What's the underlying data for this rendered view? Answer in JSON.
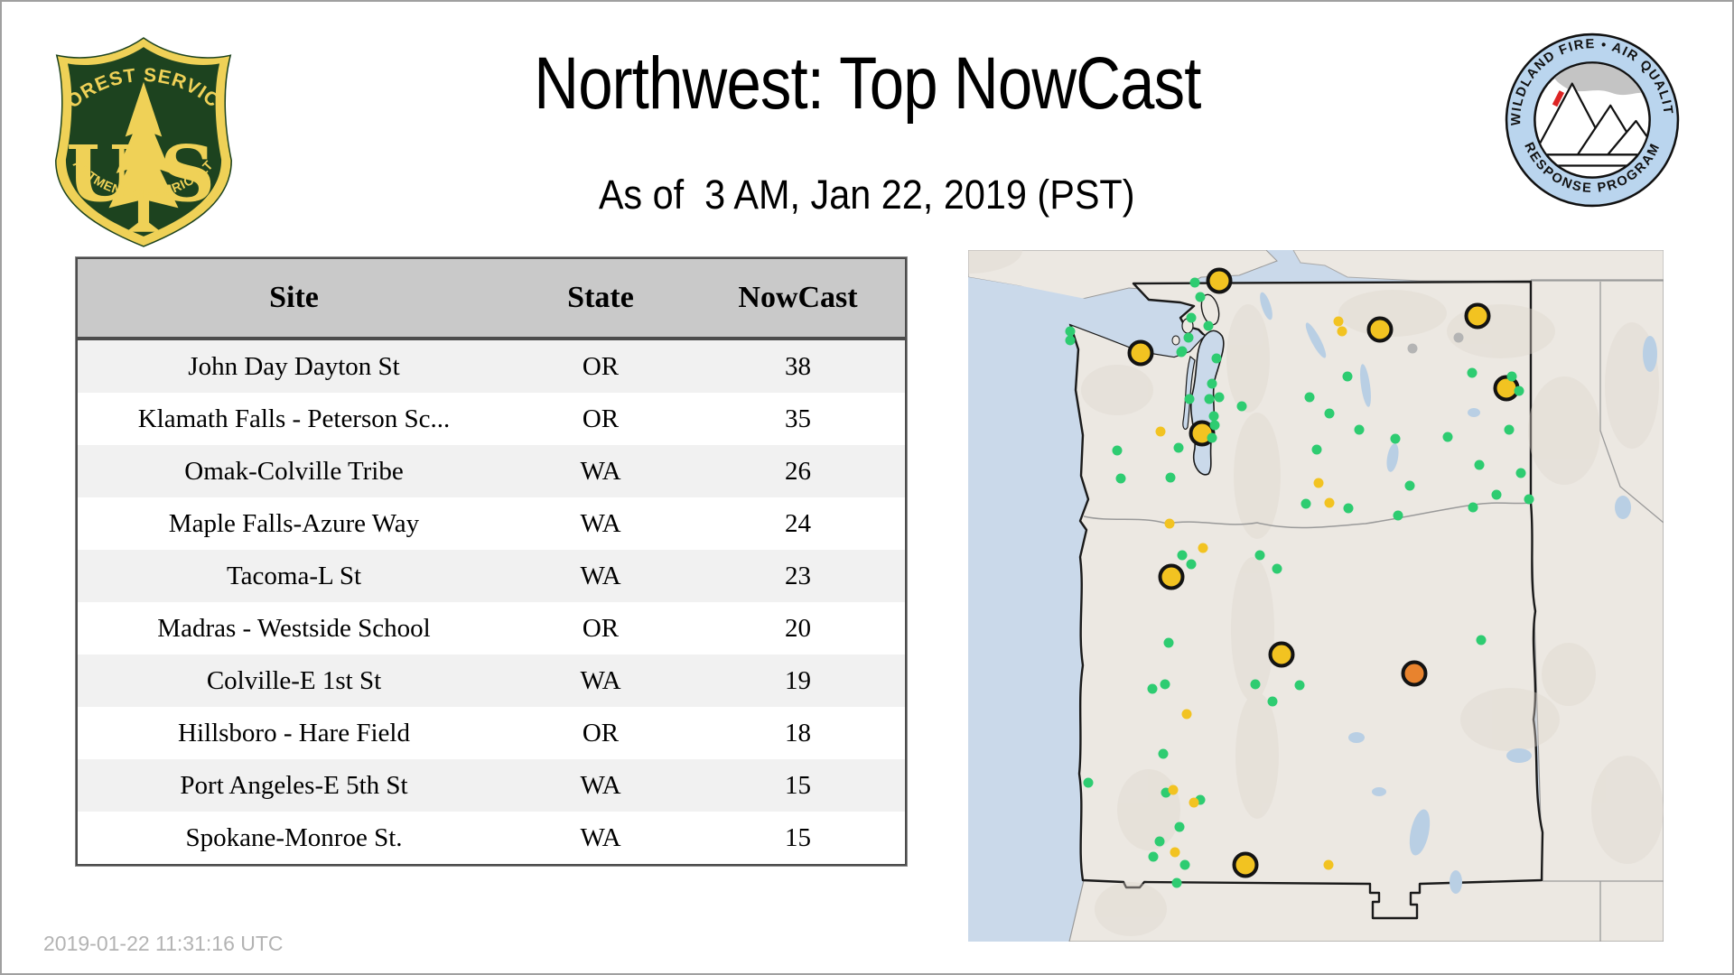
{
  "header": {
    "title": "Northwest: Top NowCast",
    "subtitle": "As of  3 AM, Jan 22, 2019 (PST)",
    "fs_logo": {
      "arc_top": "FOREST SERVICE",
      "letter_u": "U",
      "letter_s": "S",
      "arc_bottom": "DEPARTMENT OF AGRICULTURE"
    },
    "aq_logo": {
      "arc_top": "WILDLAND FIRE • AIR QUALITY",
      "arc_bottom": "RESPONSE PROGRAM"
    }
  },
  "table": {
    "columns": [
      "Site",
      "State",
      "NowCast"
    ],
    "rows": [
      {
        "site": "John Day Dayton St",
        "state": "OR",
        "nowcast": "38"
      },
      {
        "site": "Klamath Falls - Peterson Sc...",
        "state": "OR",
        "nowcast": "35"
      },
      {
        "site": "Omak-Colville Tribe",
        "state": "WA",
        "nowcast": "26"
      },
      {
        "site": "Maple Falls-Azure Way",
        "state": "WA",
        "nowcast": "24"
      },
      {
        "site": "Tacoma-L St",
        "state": "WA",
        "nowcast": "23"
      },
      {
        "site": "Madras - Westside School",
        "state": "OR",
        "nowcast": "20"
      },
      {
        "site": "Colville-E 1st St",
        "state": "WA",
        "nowcast": "19"
      },
      {
        "site": "Hillsboro - Hare Field",
        "state": "OR",
        "nowcast": "18"
      },
      {
        "site": "Port Angeles-E 5th St",
        "state": "WA",
        "nowcast": "15"
      },
      {
        "site": "Spokane-Monroe St.",
        "state": "WA",
        "nowcast": "15"
      }
    ]
  },
  "map": {
    "colors": {
      "green": "#2ecc71",
      "yellow": "#f2c321",
      "orange": "#e8832e",
      "gray": "#b4b4b4",
      "water": "#cad9ea",
      "land": "#ece8e2",
      "outline": "#1a1a1a"
    },
    "markers": [
      {
        "x": 36.1,
        "y": 4.4,
        "c": "yellow",
        "s": "large"
      },
      {
        "x": 24.8,
        "y": 14.9,
        "c": "yellow",
        "s": "large"
      },
      {
        "x": 73.2,
        "y": 9.5,
        "c": "yellow",
        "s": "large"
      },
      {
        "x": 59.2,
        "y": 11.5,
        "c": "yellow",
        "s": "large"
      },
      {
        "x": 77.4,
        "y": 20.0,
        "c": "yellow",
        "s": "large"
      },
      {
        "x": 33.6,
        "y": 26.5,
        "c": "yellow",
        "s": "large"
      },
      {
        "x": 29.2,
        "y": 47.3,
        "c": "yellow",
        "s": "large"
      },
      {
        "x": 45.1,
        "y": 58.5,
        "c": "yellow",
        "s": "large"
      },
      {
        "x": 39.9,
        "y": 88.9,
        "c": "yellow",
        "s": "large"
      },
      {
        "x": 64.2,
        "y": 61.2,
        "c": "orange",
        "s": "large"
      },
      {
        "x": 32.6,
        "y": 4.7,
        "c": "green",
        "s": "small"
      },
      {
        "x": 33.4,
        "y": 6.8,
        "c": "green",
        "s": "small"
      },
      {
        "x": 32.1,
        "y": 9.8,
        "c": "green",
        "s": "small"
      },
      {
        "x": 34.5,
        "y": 11.0,
        "c": "green",
        "s": "small"
      },
      {
        "x": 31.7,
        "y": 12.7,
        "c": "green",
        "s": "small"
      },
      {
        "x": 30.6,
        "y": 14.8,
        "c": "green",
        "s": "small"
      },
      {
        "x": 35.7,
        "y": 15.7,
        "c": "green",
        "s": "small"
      },
      {
        "x": 14.7,
        "y": 11.7,
        "c": "green",
        "s": "small"
      },
      {
        "x": 14.7,
        "y": 13.1,
        "c": "green",
        "s": "small"
      },
      {
        "x": 30.8,
        "y": 14.6,
        "c": "green",
        "s": "small"
      },
      {
        "x": 35.1,
        "y": 19.3,
        "c": "green",
        "s": "small"
      },
      {
        "x": 31.8,
        "y": 21.5,
        "c": "green",
        "s": "small"
      },
      {
        "x": 34.7,
        "y": 21.5,
        "c": "green",
        "s": "small"
      },
      {
        "x": 36.1,
        "y": 21.3,
        "c": "green",
        "s": "small"
      },
      {
        "x": 39.4,
        "y": 22.6,
        "c": "green",
        "s": "small"
      },
      {
        "x": 35.3,
        "y": 24.0,
        "c": "green",
        "s": "small"
      },
      {
        "x": 35.5,
        "y": 25.3,
        "c": "green",
        "s": "small"
      },
      {
        "x": 35.1,
        "y": 27.2,
        "c": "green",
        "s": "small"
      },
      {
        "x": 30.3,
        "y": 28.6,
        "c": "green",
        "s": "small"
      },
      {
        "x": 21.4,
        "y": 29.0,
        "c": "green",
        "s": "small"
      },
      {
        "x": 21.9,
        "y": 33.0,
        "c": "green",
        "s": "small"
      },
      {
        "x": 29.1,
        "y": 32.9,
        "c": "green",
        "s": "small"
      },
      {
        "x": 30.8,
        "y": 44.1,
        "c": "green",
        "s": "small"
      },
      {
        "x": 32.1,
        "y": 45.4,
        "c": "green",
        "s": "small"
      },
      {
        "x": 41.9,
        "y": 44.1,
        "c": "green",
        "s": "small"
      },
      {
        "x": 44.4,
        "y": 46.1,
        "c": "green",
        "s": "small"
      },
      {
        "x": 54.5,
        "y": 18.3,
        "c": "green",
        "s": "small"
      },
      {
        "x": 49.1,
        "y": 21.3,
        "c": "green",
        "s": "small"
      },
      {
        "x": 51.9,
        "y": 23.6,
        "c": "green",
        "s": "small"
      },
      {
        "x": 56.2,
        "y": 26.0,
        "c": "green",
        "s": "small"
      },
      {
        "x": 61.4,
        "y": 27.3,
        "c": "green",
        "s": "small"
      },
      {
        "x": 69.0,
        "y": 27.0,
        "c": "green",
        "s": "small"
      },
      {
        "x": 72.5,
        "y": 17.8,
        "c": "green",
        "s": "small"
      },
      {
        "x": 78.2,
        "y": 18.3,
        "c": "green",
        "s": "small"
      },
      {
        "x": 79.2,
        "y": 20.4,
        "c": "green",
        "s": "small"
      },
      {
        "x": 77.8,
        "y": 26.0,
        "c": "green",
        "s": "small"
      },
      {
        "x": 50.1,
        "y": 28.9,
        "c": "green",
        "s": "small"
      },
      {
        "x": 63.5,
        "y": 34.1,
        "c": "green",
        "s": "small"
      },
      {
        "x": 73.5,
        "y": 31.1,
        "c": "green",
        "s": "small"
      },
      {
        "x": 79.5,
        "y": 32.2,
        "c": "green",
        "s": "small"
      },
      {
        "x": 76.0,
        "y": 35.4,
        "c": "green",
        "s": "small"
      },
      {
        "x": 80.6,
        "y": 36.0,
        "c": "green",
        "s": "small"
      },
      {
        "x": 72.6,
        "y": 37.2,
        "c": "green",
        "s": "small"
      },
      {
        "x": 61.8,
        "y": 38.4,
        "c": "green",
        "s": "small"
      },
      {
        "x": 48.6,
        "y": 36.7,
        "c": "green",
        "s": "small"
      },
      {
        "x": 54.7,
        "y": 37.3,
        "c": "green",
        "s": "small"
      },
      {
        "x": 28.8,
        "y": 56.8,
        "c": "green",
        "s": "small"
      },
      {
        "x": 26.5,
        "y": 63.4,
        "c": "green",
        "s": "small"
      },
      {
        "x": 28.3,
        "y": 62.8,
        "c": "green",
        "s": "small"
      },
      {
        "x": 41.3,
        "y": 62.8,
        "c": "green",
        "s": "small"
      },
      {
        "x": 47.7,
        "y": 62.9,
        "c": "green",
        "s": "small"
      },
      {
        "x": 43.8,
        "y": 65.3,
        "c": "green",
        "s": "small"
      },
      {
        "x": 73.8,
        "y": 56.4,
        "c": "green",
        "s": "small"
      },
      {
        "x": 30.4,
        "y": 83.4,
        "c": "green",
        "s": "small"
      },
      {
        "x": 26.6,
        "y": 87.7,
        "c": "green",
        "s": "small"
      },
      {
        "x": 31.2,
        "y": 88.9,
        "c": "green",
        "s": "small"
      },
      {
        "x": 28.1,
        "y": 72.8,
        "c": "green",
        "s": "small"
      },
      {
        "x": 28.4,
        "y": 78.5,
        "c": "green",
        "s": "small"
      },
      {
        "x": 33.4,
        "y": 79.5,
        "c": "green",
        "s": "small"
      },
      {
        "x": 17.3,
        "y": 77.0,
        "c": "green",
        "s": "small"
      },
      {
        "x": 27.5,
        "y": 85.5,
        "c": "green",
        "s": "small"
      },
      {
        "x": 30.0,
        "y": 91.5,
        "c": "green",
        "s": "small"
      },
      {
        "x": 27.7,
        "y": 26.2,
        "c": "yellow",
        "s": "small"
      },
      {
        "x": 29.0,
        "y": 39.6,
        "c": "yellow",
        "s": "small"
      },
      {
        "x": 33.8,
        "y": 43.1,
        "c": "yellow",
        "s": "small"
      },
      {
        "x": 53.2,
        "y": 10.3,
        "c": "yellow",
        "s": "small"
      },
      {
        "x": 53.8,
        "y": 11.7,
        "c": "yellow",
        "s": "small"
      },
      {
        "x": 50.4,
        "y": 33.7,
        "c": "yellow",
        "s": "small"
      },
      {
        "x": 51.9,
        "y": 36.6,
        "c": "yellow",
        "s": "small"
      },
      {
        "x": 31.4,
        "y": 67.1,
        "c": "yellow",
        "s": "small"
      },
      {
        "x": 29.7,
        "y": 87.1,
        "c": "yellow",
        "s": "small"
      },
      {
        "x": 51.8,
        "y": 88.9,
        "c": "yellow",
        "s": "small"
      },
      {
        "x": 29.5,
        "y": 78.1,
        "c": "yellow",
        "s": "small"
      },
      {
        "x": 32.5,
        "y": 79.9,
        "c": "yellow",
        "s": "small"
      },
      {
        "x": 70.5,
        "y": 12.7,
        "c": "gray",
        "s": "small"
      },
      {
        "x": 63.9,
        "y": 14.2,
        "c": "gray",
        "s": "small"
      }
    ]
  },
  "footer": {
    "timestamp": "2019-01-22 11:31:16 UTC"
  }
}
